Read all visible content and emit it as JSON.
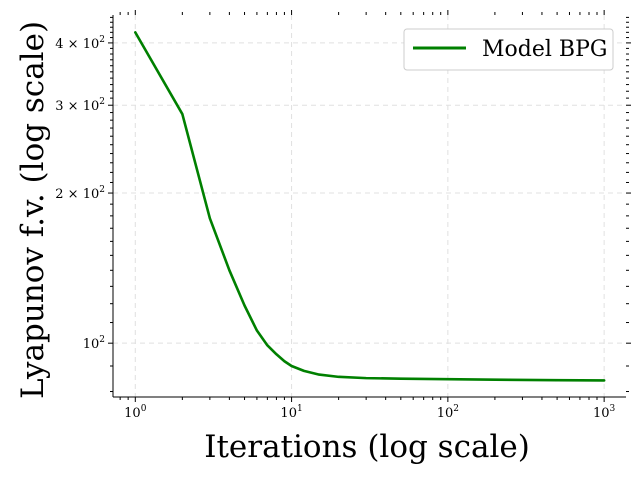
{
  "chart_data": {
    "type": "line",
    "xlabel": "Iterations (log scale)",
    "ylabel": "Lyapunov f.v. (log scale)",
    "x_scale": "log",
    "y_scale": "log",
    "xlim": [
      0.72,
      1380
    ],
    "ylim": [
      78,
      455
    ],
    "grid": true,
    "legend_position": "top-right",
    "x_ticks": [
      {
        "value": 1,
        "base": "10",
        "exp": "0"
      },
      {
        "value": 10,
        "base": "10",
        "exp": "1"
      },
      {
        "value": 100,
        "base": "10",
        "exp": "2"
      },
      {
        "value": 1000,
        "base": "10",
        "exp": "3"
      }
    ],
    "y_ticks": [
      {
        "value": 100,
        "mant": "",
        "base": "10",
        "exp": "2"
      },
      {
        "value": 200,
        "mant": "2 × ",
        "base": "10",
        "exp": "2"
      },
      {
        "value": 300,
        "mant": "3 × ",
        "base": "10",
        "exp": "2"
      },
      {
        "value": 400,
        "mant": "4 × ",
        "base": "10",
        "exp": "2"
      }
    ],
    "series": [
      {
        "name": "Model BPG",
        "color": "#008000",
        "x": [
          1,
          2,
          3,
          4,
          5,
          6,
          7,
          8,
          9,
          10,
          12,
          15,
          20,
          30,
          50,
          100,
          200,
          500,
          1000
        ],
        "y": [
          420,
          288,
          178,
          140,
          119,
          106,
          99,
          95,
          92,
          90,
          88,
          86.5,
          85.6,
          85.1,
          84.9,
          84.7,
          84.5,
          84.3,
          84.2
        ]
      }
    ]
  }
}
